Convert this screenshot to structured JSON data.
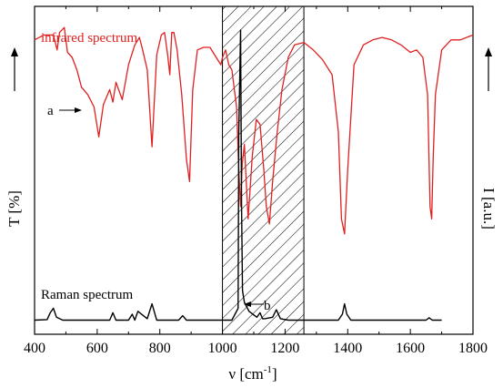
{
  "chart_data": {
    "type": "line",
    "xlabel_base": "ν [cm",
    "xlabel_sup": "-1",
    "xlabel_end": "]",
    "ylabel_left": "T [%]",
    "ylabel_right": "I [a.u.]",
    "xlim": [
      400,
      1800
    ],
    "xticks": [
      400,
      600,
      800,
      1000,
      1200,
      1400,
      1600,
      1800
    ],
    "y_ticks_shown": false,
    "grid": false,
    "colors": {
      "infrared": "#e02020",
      "raman": "#000000",
      "hatch": "#000000"
    },
    "series": [
      {
        "name": "infrared spectrum",
        "color": "#e02020",
        "x": [
          400,
          430,
          460,
          472,
          480,
          495,
          505,
          520,
          535,
          550,
          570,
          590,
          605,
          620,
          640,
          650,
          660,
          680,
          700,
          720,
          735,
          745,
          760,
          775,
          790,
          805,
          815,
          825,
          832,
          838,
          845,
          855,
          870,
          885,
          895,
          905,
          920,
          940,
          960,
          980,
          995,
          1000,
          1010,
          1020,
          1030,
          1045,
          1052,
          1058,
          1063,
          1070,
          1082,
          1095,
          1108,
          1120,
          1132,
          1140,
          1150,
          1160,
          1175,
          1190,
          1210,
          1230,
          1260,
          1290,
          1320,
          1350,
          1370,
          1380,
          1390,
          1400,
          1420,
          1450,
          1480,
          1510,
          1540,
          1570,
          1600,
          1620,
          1640,
          1655,
          1663,
          1668,
          1673,
          1680,
          1700,
          1730,
          1760,
          1800
        ],
        "y": [
          92,
          94,
          94,
          88,
          95,
          97,
          87,
          85,
          80,
          73,
          70,
          65,
          53,
          66,
          72,
          67,
          75,
          68,
          82,
          90,
          93,
          88,
          80,
          49,
          86,
          94,
          95,
          86,
          78,
          95,
          95,
          88,
          70,
          44,
          35,
          72,
          88,
          89,
          89,
          85,
          82,
          85,
          88,
          82,
          80,
          65,
          40,
          25,
          42,
          50,
          20,
          45,
          60,
          58,
          40,
          25,
          18,
          35,
          55,
          72,
          85,
          90,
          91,
          88,
          84,
          78,
          55,
          20,
          14,
          40,
          82,
          90,
          92,
          93,
          92,
          90,
          87,
          88,
          85,
          70,
          25,
          20,
          45,
          70,
          88,
          92,
          92,
          94
        ]
      },
      {
        "name": "Raman spectrum",
        "color": "#000000",
        "x": [
          400,
          440,
          450,
          460,
          470,
          490,
          640,
          650,
          660,
          700,
          712,
          720,
          730,
          760,
          775,
          790,
          860,
          873,
          885,
          1030,
          1050,
          1052,
          1058,
          1061,
          1064,
          1070,
          1085,
          1110,
          1120,
          1128,
          1135,
          1160,
          1172,
          1185,
          1210,
          1370,
          1383,
          1390,
          1397,
          1410,
          1650,
          1660,
          1670,
          1700
        ],
        "y": [
          2,
          2.2,
          4.5,
          6,
          3,
          2,
          2,
          4.5,
          2,
          2,
          4,
          2,
          5,
          2.5,
          7.5,
          2,
          2,
          3.5,
          2,
          2,
          6,
          65,
          100,
          40,
          12,
          8,
          5,
          3,
          4.5,
          2.5,
          2.5,
          3,
          5.5,
          2.5,
          2,
          2,
          4,
          7.5,
          4,
          2,
          2,
          2.8,
          2,
          2
        ]
      }
    ],
    "hatched_region": [
      1000,
      1260
    ],
    "annotations": [
      {
        "text": "infrared spectrum"
      },
      {
        "text": "Raman spectrum"
      },
      {
        "text": "a"
      },
      {
        "text": "b"
      }
    ]
  }
}
